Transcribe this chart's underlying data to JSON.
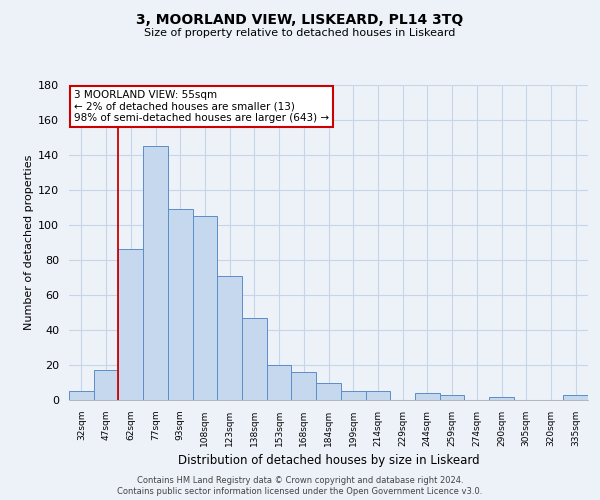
{
  "title": "3, MOORLAND VIEW, LISKEARD, PL14 3TQ",
  "subtitle": "Size of property relative to detached houses in Liskeard",
  "xlabel": "Distribution of detached houses by size in Liskeard",
  "ylabel": "Number of detached properties",
  "bar_labels": [
    "32sqm",
    "47sqm",
    "62sqm",
    "77sqm",
    "93sqm",
    "108sqm",
    "123sqm",
    "138sqm",
    "153sqm",
    "168sqm",
    "184sqm",
    "199sqm",
    "214sqm",
    "229sqm",
    "244sqm",
    "259sqm",
    "274sqm",
    "290sqm",
    "305sqm",
    "320sqm",
    "335sqm"
  ],
  "bar_values": [
    5,
    17,
    86,
    145,
    109,
    105,
    71,
    47,
    20,
    16,
    10,
    5,
    5,
    0,
    4,
    3,
    0,
    2,
    0,
    0,
    3
  ],
  "bar_color": "#c5d8ed",
  "bar_edge_color": "#5b8dc8",
  "vline_color": "#cc0000",
  "vline_x": 1.5,
  "ylim": [
    0,
    180
  ],
  "yticks": [
    0,
    20,
    40,
    60,
    80,
    100,
    120,
    140,
    160,
    180
  ],
  "annotation_text_line1": "3 MOORLAND VIEW: 55sqm",
  "annotation_text_line2": "← 2% of detached houses are smaller (13)",
  "annotation_text_line3": "98% of semi-detached houses are larger (643) →",
  "annotation_box_color": "#ffffff",
  "annotation_box_edge_color": "#cc0000",
  "footer_line1": "Contains HM Land Registry data © Crown copyright and database right 2024.",
  "footer_line2": "Contains public sector information licensed under the Open Government Licence v3.0.",
  "bg_color": "#edf2f9",
  "plot_bg_color": "#edf2f9",
  "grid_color": "#c8d4e8",
  "spine_color": "#a0a0a0"
}
